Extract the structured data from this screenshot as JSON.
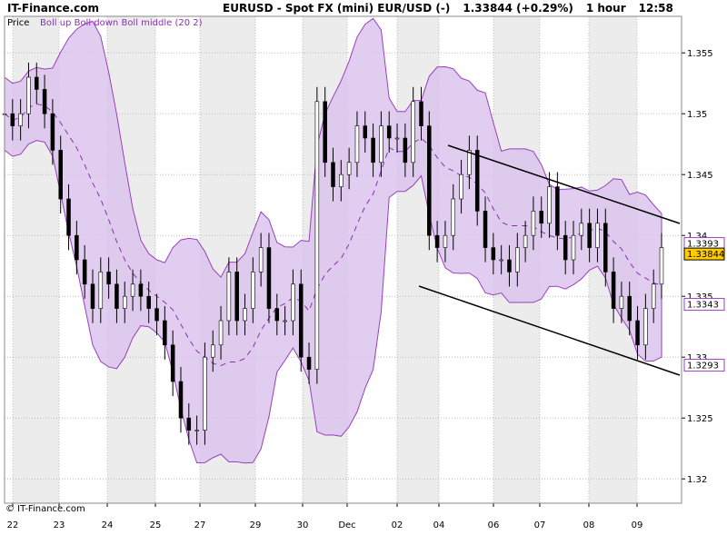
{
  "header": {
    "brand": "IT-Finance.com",
    "symbol": "EURUSD - Spot FX (mini) EUR/USD (-)",
    "price": "1.33844 (+0.29%)",
    "timeframe": "1 hour",
    "time": "12:58"
  },
  "legend": {
    "price_label": "Price",
    "indicator_label": "Boll up Boll down Boll middle (20 2)"
  },
  "footer": {
    "copyright": "© IT-Finance.com"
  },
  "colors": {
    "band_fill": "#dcc4ec",
    "band_line": "#9a3fc0",
    "middle_line": "#8b2fb5",
    "candle_up": "#ffffff",
    "candle_down": "#000000",
    "wick": "#000000",
    "trendline": "#000000",
    "weekend_shade": "#ececec",
    "last_price_bg": "#ffcc00"
  },
  "chart_data": {
    "type": "candlestick",
    "title": "EURUSD - Spot FX (mini) EUR/USD (-)",
    "indicator": "Bollinger Bands (20, 2)",
    "ylim": [
      1.318,
      1.358
    ],
    "y_ticks": [
      "1.32",
      "1.325",
      "1.33",
      "1.335",
      "1.34",
      "1.345",
      "1.35",
      "1.355"
    ],
    "x_ticks": [
      "22",
      "23",
      "24",
      "25",
      "27",
      "29",
      "30",
      "Dec",
      "02",
      "04",
      "06",
      "07",
      "08",
      "09"
    ],
    "right_labels": [
      {
        "text": "1.3393",
        "value": 1.3393,
        "style": "band"
      },
      {
        "text": "1.33844",
        "value": 1.33844,
        "style": "last"
      },
      {
        "text": "1.3343",
        "value": 1.3343,
        "style": "band"
      },
      {
        "text": "1.3293",
        "value": 1.3293,
        "style": "band"
      }
    ],
    "last_price": 1.33844,
    "grid": true,
    "trendlines": [
      {
        "from": [
          "03",
          1.348
        ],
        "to": [
          "09",
          1.3415
        ]
      },
      {
        "from": [
          "03",
          1.3365
        ],
        "to": [
          "09",
          1.329
        ]
      }
    ],
    "approx_close_series": [
      1.35,
      1.349,
      1.35,
      1.353,
      1.352,
      1.35,
      1.347,
      1.343,
      1.34,
      1.338,
      1.336,
      1.334,
      1.337,
      1.336,
      1.334,
      1.335,
      1.336,
      1.335,
      1.334,
      1.333,
      1.331,
      1.328,
      1.325,
      1.324,
      1.324,
      1.33,
      1.331,
      1.333,
      1.337,
      1.333,
      1.334,
      1.337,
      1.339,
      1.334,
      1.333,
      1.333,
      1.336,
      1.33,
      1.329,
      1.351,
      1.346,
      1.344,
      1.345,
      1.346,
      1.349,
      1.348,
      1.346,
      1.349,
      1.348,
      1.348,
      1.346,
      1.351,
      1.349,
      1.34,
      1.339,
      1.34,
      1.343,
      1.345,
      1.347,
      1.342,
      1.339,
      1.338,
      1.338,
      1.337,
      1.339,
      1.34,
      1.342,
      1.341,
      1.344,
      1.34,
      1.338,
      1.34,
      1.341,
      1.339,
      1.341,
      1.337,
      1.334,
      1.335,
      1.333,
      1.331,
      1.334,
      1.336,
      1.339
    ]
  }
}
